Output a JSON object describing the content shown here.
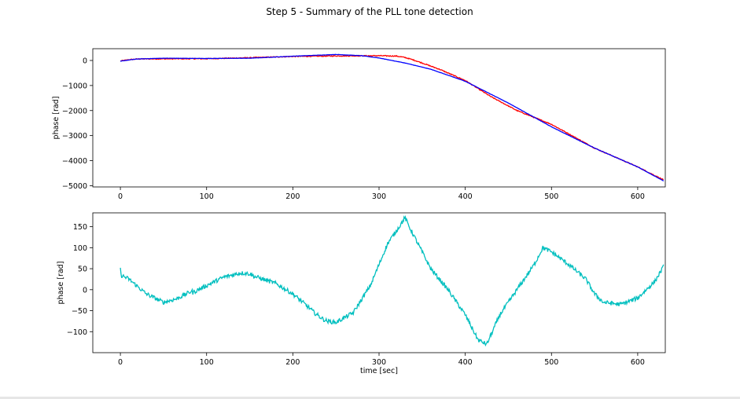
{
  "figure": {
    "title": "Step 5 - Summary of the PLL tone detection"
  },
  "colors": {
    "red": "#ff0000",
    "blue": "#0000ff",
    "cyan": "#00bfbf",
    "axes": "#000000"
  },
  "chart_data": [
    {
      "type": "line",
      "title": "",
      "xlabel": "",
      "ylabel": "phase [rad]",
      "xlim": [
        -32,
        632
      ],
      "ylim": [
        -5050,
        470
      ],
      "xticks": [
        "0",
        "100",
        "200",
        "300",
        "400",
        "500",
        "600"
      ],
      "yticks": [
        "0",
        "−1000",
        "−2000",
        "−3000",
        "−4000",
        "−5000"
      ],
      "grid": false,
      "series": [
        {
          "color": "red",
          "noise": 18,
          "points": [
            [
              0,
              -20
            ],
            [
              10,
              30
            ],
            [
              20,
              60
            ],
            [
              50,
              65
            ],
            [
              100,
              70
            ],
            [
              150,
              110
            ],
            [
              200,
              160
            ],
            [
              250,
              180
            ],
            [
              300,
              190
            ],
            [
              320,
              175
            ],
            [
              330,
              120
            ],
            [
              340,
              20
            ],
            [
              350,
              -100
            ],
            [
              370,
              -350
            ],
            [
              400,
              -800
            ],
            [
              430,
              -1450
            ],
            [
              460,
              -2000
            ],
            [
              500,
              -2550
            ],
            [
              550,
              -3500
            ],
            [
              600,
              -4250
            ],
            [
              630,
              -4770
            ]
          ]
        },
        {
          "color": "blue",
          "noise": 5,
          "points": [
            [
              0,
              -30
            ],
            [
              10,
              20
            ],
            [
              20,
              60
            ],
            [
              50,
              90
            ],
            [
              100,
              80
            ],
            [
              150,
              90
            ],
            [
              200,
              170
            ],
            [
              250,
              240
            ],
            [
              280,
              190
            ],
            [
              300,
              100
            ],
            [
              330,
              -100
            ],
            [
              360,
              -350
            ],
            [
              400,
              -830
            ],
            [
              450,
              -1700
            ],
            [
              500,
              -2650
            ],
            [
              550,
              -3500
            ],
            [
              600,
              -4250
            ],
            [
              630,
              -4810
            ]
          ]
        }
      ]
    },
    {
      "type": "line",
      "title": "",
      "xlabel": "time [sec]",
      "ylabel": "phase [rad]",
      "xlim": [
        -32,
        632
      ],
      "ylim": [
        -150,
        183
      ],
      "xticks": [
        "0",
        "100",
        "200",
        "300",
        "400",
        "500",
        "600"
      ],
      "yticks": [
        "150",
        "100",
        "50",
        "0",
        "−50",
        "−100"
      ],
      "grid": false,
      "series": [
        {
          "color": "cyan",
          "noise": 5,
          "points": [
            [
              0,
              48
            ],
            [
              0.5,
              35
            ],
            [
              10,
              25
            ],
            [
              30,
              -10
            ],
            [
              50,
              -30
            ],
            [
              65,
              -22
            ],
            [
              83,
              -3
            ],
            [
              84,
              -7
            ],
            [
              100,
              10
            ],
            [
              120,
              30
            ],
            [
              140,
              40
            ],
            [
              150,
              38
            ],
            [
              155,
              32
            ],
            [
              180,
              15
            ],
            [
              200,
              -10
            ],
            [
              220,
              -45
            ],
            [
              225,
              -55
            ],
            [
              235,
              -70
            ],
            [
              240,
              -75
            ],
            [
              250,
              -78
            ],
            [
              270,
              -55
            ],
            [
              290,
              10
            ],
            [
              310,
              110
            ],
            [
              325,
              155
            ],
            [
              330,
              172
            ],
            [
              335,
              150
            ],
            [
              345,
              110
            ],
            [
              360,
              50
            ],
            [
              380,
              0
            ],
            [
              400,
              -60
            ],
            [
              415,
              -120
            ],
            [
              425,
              -130
            ],
            [
              440,
              -60
            ],
            [
              460,
              0
            ],
            [
              480,
              60
            ],
            [
              490,
              100
            ],
            [
              500,
              90
            ],
            [
              520,
              60
            ],
            [
              540,
              25
            ],
            [
              550,
              -10
            ],
            [
              560,
              -30
            ],
            [
              580,
              -35
            ],
            [
              600,
              -20
            ],
            [
              620,
              20
            ],
            [
              630,
              55
            ]
          ]
        }
      ]
    }
  ]
}
